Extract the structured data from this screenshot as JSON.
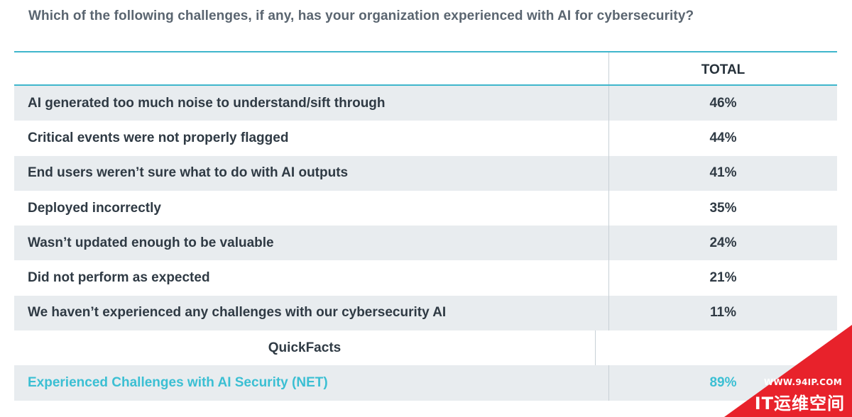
{
  "question": "Which of the following challenges, if any, has your organization experienced with AI for cybersecurity?",
  "table": {
    "header": {
      "label": "",
      "total": "TOTAL"
    },
    "rows": [
      {
        "label": "AI generated too much noise to understand/sift through",
        "value": "46%"
      },
      {
        "label": "Critical events were not properly flagged",
        "value": "44%"
      },
      {
        "label": "End users weren’t sure what to do with AI outputs",
        "value": "41%"
      },
      {
        "label": "Deployed incorrectly",
        "value": "35%"
      },
      {
        "label": "Wasn’t updated enough to be valuable",
        "value": "24%"
      },
      {
        "label": "Did not perform as expected",
        "value": "21%"
      },
      {
        "label": "We haven’t experienced any challenges with our cybersecurity AI",
        "value": "11%"
      }
    ],
    "section_heading": "QuickFacts",
    "net_row": {
      "label": "Experienced Challenges with AI Security (NET)",
      "value": "89%"
    }
  },
  "colors": {
    "accent": "#3bbfd3",
    "shaded_row": "#e8ecef",
    "watermark_red": "#e8222b"
  },
  "watermark": {
    "url": "WWW.94IP.COM",
    "text": "IT运维空间"
  }
}
